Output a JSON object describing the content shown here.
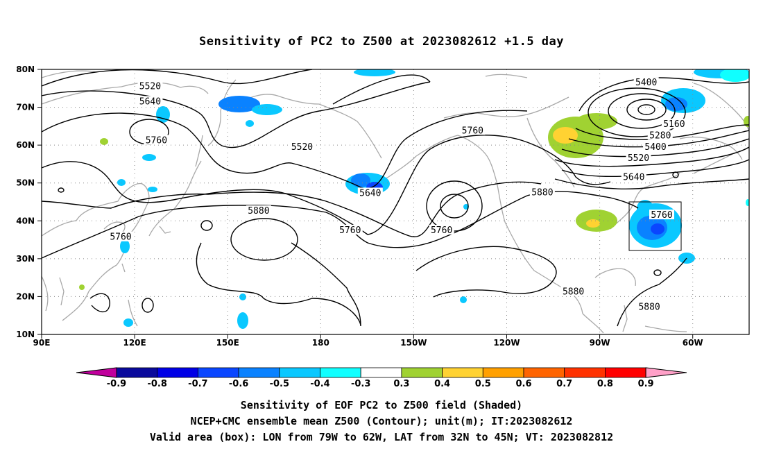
{
  "title": "Sensitivity of PC2 to Z500 at 2023082612 +1.5 day",
  "lat_labels": [
    "80N",
    "70N",
    "60N",
    "50N",
    "40N",
    "30N",
    "20N",
    "10N"
  ],
  "lon_labels": [
    "90E",
    "120E",
    "150E",
    "180",
    "150W",
    "120W",
    "90W",
    "60W"
  ],
  "colorbar": {
    "labels": [
      "-0.9",
      "-0.8",
      "-0.7",
      "-0.6",
      "-0.5",
      "-0.4",
      "-0.3",
      "0.3",
      "0.4",
      "0.5",
      "0.6",
      "0.7",
      "0.8",
      "0.9"
    ],
    "colors": [
      "#c0009c",
      "#0a0a9c",
      "#0000e6",
      "#0a46ff",
      "#0a82ff",
      "#0ac8ff",
      "#10ffff",
      "#ffffff",
      "#a0d232",
      "#ffd232",
      "#ffa000",
      "#ff6400",
      "#ff3200",
      "#ff0000",
      "#ffa0c8"
    ]
  },
  "contour_labels": [
    {
      "text": "5520",
      "lon": 125,
      "lat": 75.5
    },
    {
      "text": "5640",
      "lon": 125,
      "lat": 71.5
    },
    {
      "text": "5760",
      "lon": 127,
      "lat": 61.2
    },
    {
      "text": "5520",
      "lon": 174,
      "lat": 59.5
    },
    {
      "text": "5640",
      "lon": 196,
      "lat": 47.3
    },
    {
      "text": "5760",
      "lon": 189.5,
      "lat": 37.5
    },
    {
      "text": "5760",
      "lon": 219,
      "lat": 37.5
    },
    {
      "text": "5880",
      "lon": 160,
      "lat": 42.6
    },
    {
      "text": "5760",
      "lon": 115.5,
      "lat": 35.7
    },
    {
      "text": "5760",
      "lon": 229,
      "lat": 63.8
    },
    {
      "text": "5880",
      "lon": 251.5,
      "lat": 47.5
    },
    {
      "text": "5880",
      "lon": 261.5,
      "lat": 21.3
    },
    {
      "text": "5880",
      "lon": 286,
      "lat": 17.2
    },
    {
      "text": "5400",
      "lon": 285,
      "lat": 76.5
    },
    {
      "text": "5160",
      "lon": 294,
      "lat": 65.5
    },
    {
      "text": "5280",
      "lon": 289.5,
      "lat": 62.5
    },
    {
      "text": "5400",
      "lon": 288,
      "lat": 59.5
    },
    {
      "text": "5520",
      "lon": 282.5,
      "lat": 56.5
    },
    {
      "text": "5640",
      "lon": 281,
      "lat": 51.5
    },
    {
      "text": "5760",
      "lon": 290,
      "lat": 41.5
    }
  ],
  "caption": [
    "Sensitivity of EOF PC2 to Z500 field (Shaded)",
    "NCEP+CMC ensemble mean Z500 (Contour); unit(m); IT:2023082612",
    "Valid area (box): LON from 79W to 62W, LAT from 32N to 45N; VT: 2023082812"
  ]
}
